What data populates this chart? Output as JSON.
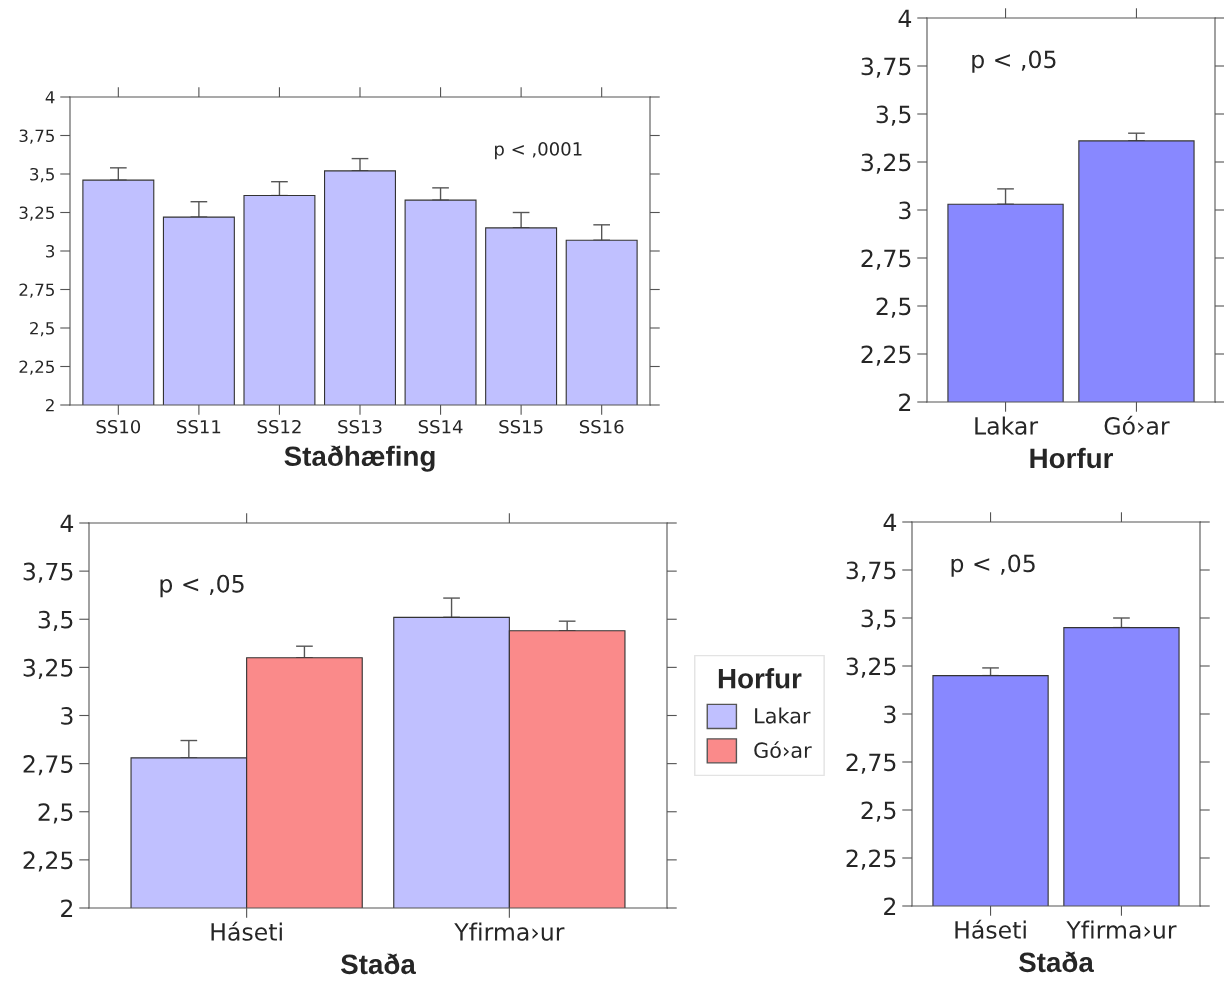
{
  "chart_data": [
    {
      "type": "bar",
      "xlabel": "Staðhæfing",
      "categories": [
        "SS10",
        "SS11",
        "SS12",
        "SS13",
        "SS14",
        "SS15",
        "SS16"
      ],
      "series": [
        {
          "color": "#c0c0ff",
          "values": [
            3.46,
            3.22,
            3.36,
            3.52,
            3.33,
            3.15,
            3.07
          ],
          "errors": [
            [
              3.46,
              3.54
            ],
            [
              3.22,
              3.32
            ],
            [
              3.36,
              3.45
            ],
            [
              3.52,
              3.6
            ],
            [
              3.33,
              3.41
            ],
            [
              3.15,
              3.25
            ],
            [
              3.07,
              3.17
            ]
          ]
        }
      ],
      "ylim": [
        2,
        4
      ],
      "yticks": [
        2,
        {
          "value": 2.25,
          "label": "2,25"
        },
        {
          "value": 2.5,
          "label": "2,5"
        },
        {
          "value": 2.75,
          "label": "2,75"
        },
        3,
        {
          "value": 3.25,
          "label": "3,25"
        },
        {
          "value": 3.5,
          "label": "3,5"
        },
        {
          "value": 3.75,
          "label": "3,75"
        },
        4
      ],
      "annotations": [
        "p < ,0001"
      ],
      "grid": false,
      "legend": false
    },
    {
      "type": "bar",
      "xlabel": "Horfur",
      "categories": [
        "Lakar",
        "Gó›ar"
      ],
      "series": [
        {
          "color": "#8888ff",
          "values": [
            3.03,
            3.36
          ],
          "errors": [
            [
              3.03,
              3.11
            ],
            [
              3.36,
              3.4
            ]
          ]
        }
      ],
      "ylim": [
        2,
        4
      ],
      "yticks": [
        2,
        {
          "value": 2.25,
          "label": "2,25"
        },
        {
          "value": 2.5,
          "label": "2,5"
        },
        {
          "value": 2.75,
          "label": "2,75"
        },
        3,
        {
          "value": 3.25,
          "label": "3,25"
        },
        {
          "value": 3.5,
          "label": "3,5"
        },
        {
          "value": 3.75,
          "label": "3,75"
        },
        4
      ],
      "annotations": [
        "p < ,05"
      ],
      "grid": false,
      "legend": false
    },
    {
      "type": "bar",
      "xlabel": "Staða",
      "categories": [
        "Háseti",
        "Yfirma›ur"
      ],
      "legend_title": "Horfur",
      "series": [
        {
          "name": "Lakar",
          "color": "#c0c0ff",
          "values": [
            2.78,
            3.51
          ],
          "errors": [
            [
              2.78,
              2.87
            ],
            [
              3.51,
              3.61
            ]
          ]
        },
        {
          "name": "Gó›ar",
          "color": "#fa8a8a",
          "values": [
            3.3,
            3.44
          ],
          "errors": [
            [
              3.3,
              3.36
            ],
            [
              3.44,
              3.49
            ]
          ]
        }
      ],
      "ylim": [
        2,
        4
      ],
      "yticks": [
        2,
        {
          "value": 2.25,
          "label": "2,25"
        },
        {
          "value": 2.5,
          "label": "2,5"
        },
        {
          "value": 2.75,
          "label": "2,75"
        },
        3,
        {
          "value": 3.25,
          "label": "3,25"
        },
        {
          "value": 3.5,
          "label": "3,5"
        },
        {
          "value": 3.75,
          "label": "3,75"
        },
        4
      ],
      "annotations": [
        "p < ,05"
      ],
      "grid": false,
      "legend": "right"
    },
    {
      "type": "bar",
      "xlabel": "Staða",
      "categories": [
        "Háseti",
        "Yfirma›ur"
      ],
      "series": [
        {
          "color": "#8888ff",
          "values": [
            3.2,
            3.45
          ],
          "errors": [
            [
              3.2,
              3.24
            ],
            [
              3.45,
              3.5
            ]
          ]
        }
      ],
      "ylim": [
        2,
        4
      ],
      "yticks": [
        2,
        {
          "value": 2.25,
          "label": "2,25"
        },
        {
          "value": 2.5,
          "label": "2,5"
        },
        {
          "value": 2.75,
          "label": "2,75"
        },
        3,
        {
          "value": 3.25,
          "label": "3,25"
        },
        {
          "value": 3.5,
          "label": "3,5"
        },
        {
          "value": 3.75,
          "label": "3,75"
        },
        4
      ],
      "annotations": [
        "p < ,05"
      ],
      "grid": false,
      "legend": false
    }
  ]
}
